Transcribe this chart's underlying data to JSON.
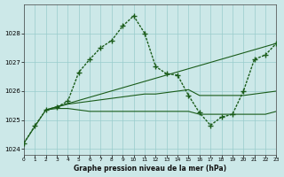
{
  "title": "Graphe pression niveau de la mer (hPa)",
  "bg": "#cce8e8",
  "grid_color": "#99cccc",
  "line_color": "#1a5c1a",
  "figsize": [
    3.2,
    2.0
  ],
  "dpi": 100,
  "xlim": [
    0,
    23
  ],
  "ylim": [
    1023.8,
    1029.0
  ],
  "yticks": [
    1024,
    1025,
    1026,
    1027,
    1028
  ],
  "xticks": [
    0,
    1,
    2,
    3,
    4,
    5,
    6,
    7,
    8,
    9,
    10,
    11,
    12,
    13,
    14,
    15,
    16,
    17,
    18,
    19,
    20,
    21,
    22,
    23
  ],
  "s_main_x": [
    0,
    1,
    2,
    3,
    4,
    5,
    6,
    7,
    8,
    9,
    10,
    11,
    12,
    13,
    14,
    15,
    16,
    17,
    18,
    19,
    20,
    21,
    22,
    23
  ],
  "s_main_y": [
    1024.2,
    1024.8,
    1025.35,
    1025.45,
    1025.65,
    1026.65,
    1027.1,
    1027.5,
    1027.75,
    1028.25,
    1028.6,
    1028.0,
    1026.85,
    1026.6,
    1026.55,
    1025.85,
    1025.25,
    1024.82,
    1025.1,
    1025.2,
    1026.0,
    1027.1,
    1027.25,
    1027.65
  ],
  "s_trend_x": [
    0,
    2,
    23
  ],
  "s_trend_y": [
    1024.2,
    1025.35,
    1027.65
  ],
  "s_mid_x": [
    2,
    3,
    4,
    5,
    6,
    7,
    8,
    9,
    10,
    11,
    12,
    13,
    14,
    15,
    16,
    17,
    18,
    19,
    20,
    21,
    22,
    23
  ],
  "s_mid_y": [
    1025.35,
    1025.45,
    1025.55,
    1025.6,
    1025.65,
    1025.7,
    1025.75,
    1025.8,
    1025.85,
    1025.9,
    1025.9,
    1025.95,
    1026.0,
    1026.05,
    1025.85,
    1025.85,
    1025.85,
    1025.85,
    1025.85,
    1025.9,
    1025.95,
    1026.0
  ],
  "s_flat_x": [
    2,
    3,
    4,
    5,
    6,
    7,
    8,
    9,
    10,
    11,
    12,
    13,
    14,
    15,
    16,
    17,
    18,
    19,
    20,
    21,
    22,
    23
  ],
  "s_flat_y": [
    1025.35,
    1025.4,
    1025.4,
    1025.35,
    1025.3,
    1025.3,
    1025.3,
    1025.3,
    1025.3,
    1025.3,
    1025.3,
    1025.3,
    1025.3,
    1025.3,
    1025.2,
    1025.2,
    1025.2,
    1025.2,
    1025.2,
    1025.2,
    1025.2,
    1025.3
  ]
}
